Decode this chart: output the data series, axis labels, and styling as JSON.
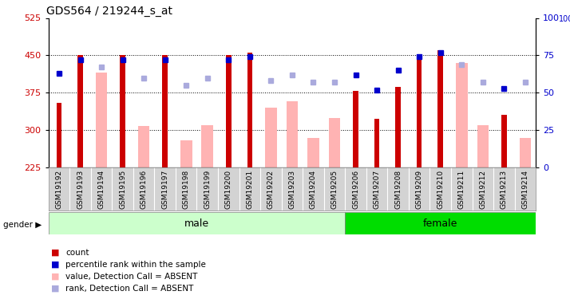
{
  "title": "GDS564 / 219244_s_at",
  "samples": [
    "GSM19192",
    "GSM19193",
    "GSM19194",
    "GSM19195",
    "GSM19196",
    "GSM19197",
    "GSM19198",
    "GSM19199",
    "GSM19200",
    "GSM19201",
    "GSM19202",
    "GSM19203",
    "GSM19204",
    "GSM19205",
    "GSM19206",
    "GSM19207",
    "GSM19208",
    "GSM19209",
    "GSM19210",
    "GSM19211",
    "GSM19212",
    "GSM19213",
    "GSM19214"
  ],
  "count_values": [
    355,
    450,
    null,
    450,
    null,
    450,
    null,
    null,
    450,
    456,
    null,
    null,
    null,
    null,
    378,
    322,
    387,
    453,
    460,
    null,
    null,
    330,
    null
  ],
  "absent_values": [
    null,
    null,
    415,
    null,
    308,
    null,
    280,
    310,
    null,
    null,
    345,
    358,
    285,
    325,
    null,
    null,
    null,
    null,
    null,
    435,
    310,
    null,
    285
  ],
  "rank_present_pct": [
    63,
    72,
    null,
    72,
    null,
    72,
    null,
    null,
    72,
    74,
    null,
    null,
    null,
    null,
    62,
    52,
    65,
    74,
    77,
    null,
    null,
    53,
    null
  ],
  "rank_absent_pct": [
    null,
    null,
    67,
    null,
    60,
    null,
    55,
    60,
    null,
    null,
    58,
    62,
    57,
    57,
    null,
    null,
    null,
    null,
    null,
    69,
    57,
    null,
    57
  ],
  "ylim_left": [
    225,
    525
  ],
  "ylim_right": [
    0,
    100
  ],
  "yticks_left": [
    225,
    300,
    375,
    450,
    525
  ],
  "yticks_right": [
    0,
    25,
    50,
    75,
    100
  ],
  "n_male": 14,
  "n_female": 9,
  "color_count": "#cc0000",
  "color_absent_bar": "#ffb3b3",
  "color_rank_present": "#0000cc",
  "color_rank_absent": "#aaaadd",
  "color_male_bg": "#ccffcc",
  "color_female_bg": "#00dd00",
  "ylabel_left_color": "#cc0000",
  "ylabel_right_color": "#0000cc",
  "grid_lines": [
    300,
    375,
    450
  ],
  "absent_bar_width": 0.55,
  "count_bar_width": 0.25
}
